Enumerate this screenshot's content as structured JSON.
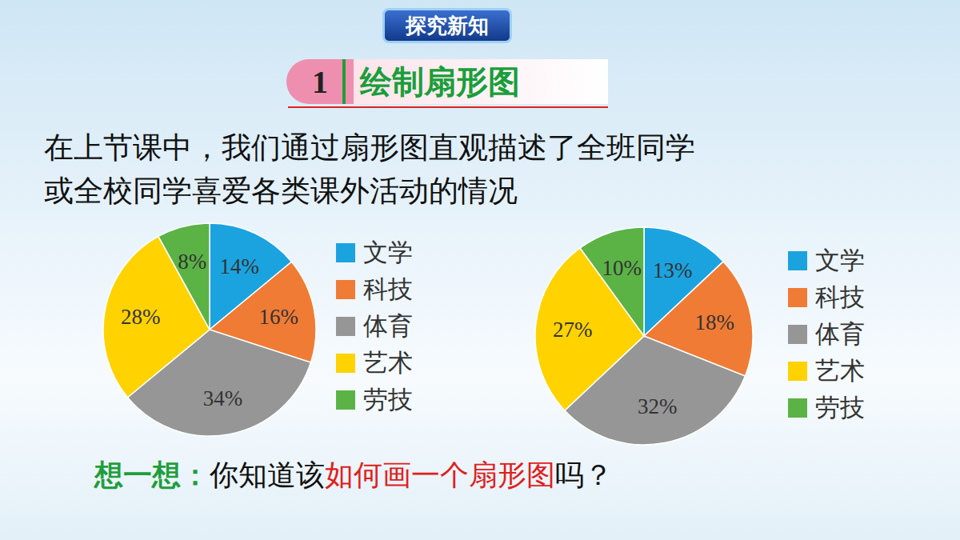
{
  "header": {
    "badge": "探究新知",
    "number": "1",
    "title": "绘制扇形图"
  },
  "text": [
    "在上节课中，我们通过扇形图直观描述了全班同学",
    "或全校同学喜爱各类课外活动的情况"
  ],
  "prompt": [
    {
      "text": "想一想：",
      "color": "#1e9e3c"
    },
    {
      "text": "你知道该",
      "color": "#111111"
    },
    {
      "text": "如何画一个扇形图",
      "color": "#e0201b"
    },
    {
      "text": "吗？",
      "color": "#111111"
    }
  ],
  "chart_data": [
    {
      "type": "pie",
      "categories": [
        "文学",
        "科技",
        "体育",
        "艺术",
        "劳技"
      ],
      "values": [
        14,
        16,
        34,
        28,
        8
      ],
      "value_labels": [
        "14%",
        "16%",
        "34%",
        "28%",
        "8%"
      ],
      "colors": [
        "#1ba3e0",
        "#f07b35",
        "#969696",
        "#ffd200",
        "#5bb346"
      ],
      "data_labels": true
    },
    {
      "type": "pie",
      "categories": [
        "文学",
        "科技",
        "体育",
        "艺术",
        "劳技"
      ],
      "values": [
        13,
        18,
        32,
        27,
        10
      ],
      "value_labels": [
        "13%",
        "18%",
        "32%",
        "27%",
        "10%"
      ],
      "colors": [
        "#1ba3e0",
        "#f07b35",
        "#969696",
        "#ffd200",
        "#5bb346"
      ],
      "data_labels": true
    }
  ]
}
